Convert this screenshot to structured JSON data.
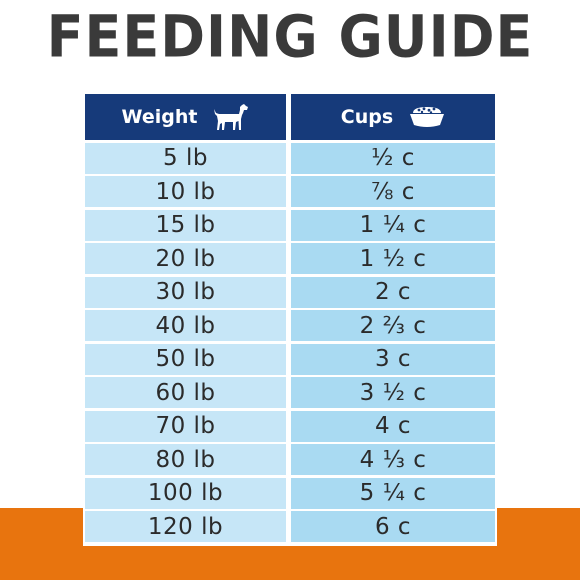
{
  "title": "FEEDING GUIDE",
  "colors": {
    "title": "#3a3a3a",
    "header": "#163a7a",
    "weight_cell": "#c6e6f7",
    "cups_cell": "#a9daf2",
    "accent": "#e8740e"
  },
  "table": {
    "headers": {
      "weight": {
        "label": "Weight",
        "icon": "dog-icon"
      },
      "cups": {
        "label": "Cups",
        "icon": "food-bowl-icon"
      }
    },
    "rows": [
      {
        "weight": "5 lb",
        "cups": "½ c"
      },
      {
        "weight": "10 lb",
        "cups": "⅞ c"
      },
      {
        "weight": "15 lb",
        "cups": "1 ¼ c"
      },
      {
        "weight": "20 lb",
        "cups": "1 ½ c"
      },
      {
        "weight": "30 lb",
        "cups": "2 c"
      },
      {
        "weight": "40 lb",
        "cups": "2 ⅔ c"
      },
      {
        "weight": "50 lb",
        "cups": "3 c"
      },
      {
        "weight": "60 lb",
        "cups": "3 ½ c"
      },
      {
        "weight": "70 lb",
        "cups": "4 c"
      },
      {
        "weight": "80 lb",
        "cups": "4 ⅓ c"
      },
      {
        "weight": "100 lb",
        "cups": "5 ¼ c"
      },
      {
        "weight": "120 lb",
        "cups": "6 c"
      }
    ]
  }
}
